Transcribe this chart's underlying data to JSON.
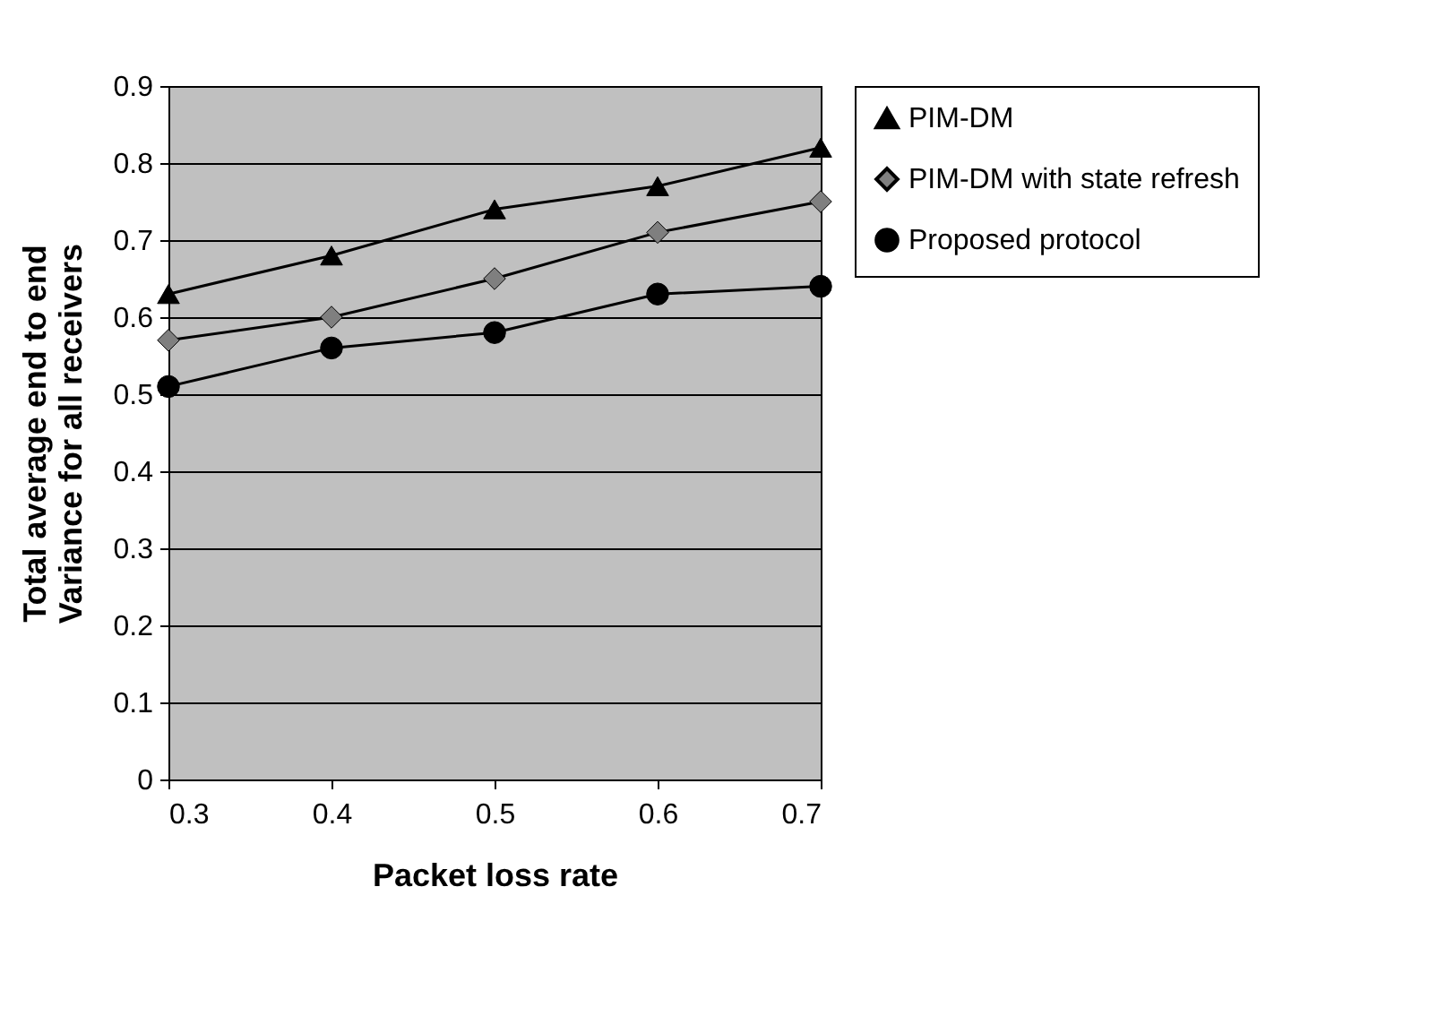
{
  "chart_data": {
    "type": "line",
    "xlabel": "Packet loss rate",
    "ylabel": "Total average end to end Variance for all receivers",
    "x": [
      0.3,
      0.4,
      0.5,
      0.6,
      0.7
    ],
    "series": [
      {
        "name": "PIM-DM",
        "color": "#000000",
        "marker": "triangle",
        "values": [
          0.63,
          0.68,
          0.74,
          0.77,
          0.82
        ]
      },
      {
        "name": "PIM-DM with state refresh",
        "color": "#7f7f7f",
        "marker": "diamond",
        "values": [
          0.57,
          0.6,
          0.65,
          0.71,
          0.75
        ]
      },
      {
        "name": "Proposed protocol",
        "color": "#000000",
        "marker": "circle",
        "values": [
          0.51,
          0.56,
          0.58,
          0.63,
          0.64
        ]
      }
    ],
    "xlim": [
      0.3,
      0.7
    ],
    "xticks": [
      0.3,
      0.4,
      0.5,
      0.6,
      0.7
    ],
    "ylim": [
      0,
      0.9
    ],
    "yticks": [
      0,
      0.1,
      0.2,
      0.3,
      0.4,
      0.5,
      0.6,
      0.7,
      0.8,
      0.9
    ],
    "grid": "y",
    "legend": "right",
    "line_style": "solid"
  }
}
